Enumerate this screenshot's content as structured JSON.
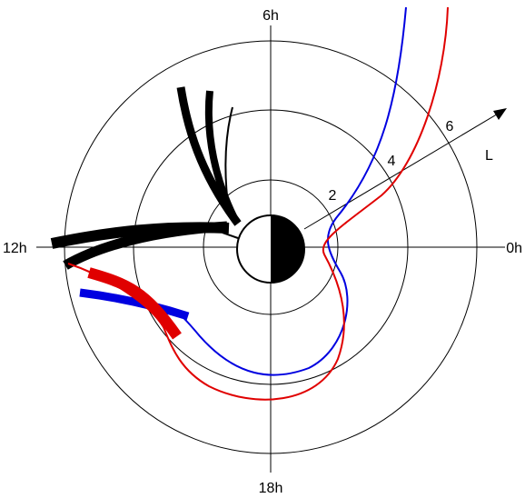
{
  "diagram": {
    "labels": {
      "top": "6h",
      "left": "12h",
      "right": "0h",
      "bottom": "18h",
      "axis": "L",
      "ring_2": "2",
      "ring_4": "4",
      "ring_6": "6"
    },
    "colors": {
      "blue_track": "#0000e0",
      "red_track": "#e00000",
      "black_bands": "#000000"
    }
  }
}
